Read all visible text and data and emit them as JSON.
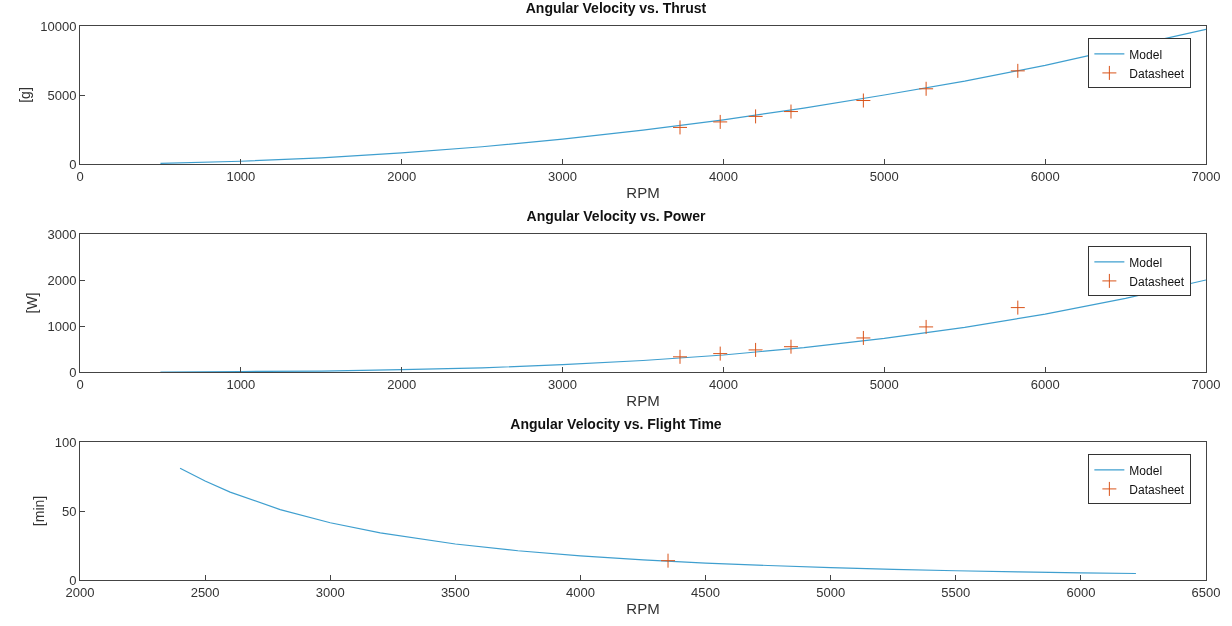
{
  "chart_data": [
    {
      "type": "line",
      "title": "Angular Velocity vs. Thrust",
      "xlabel": "RPM",
      "ylabel": "[g]",
      "xlim": [
        0,
        7000
      ],
      "xticks": [
        0,
        1000,
        2000,
        3000,
        4000,
        5000,
        6000,
        7000
      ],
      "ylim": [
        0,
        10000
      ],
      "yticks": [
        0,
        5000,
        10000
      ],
      "grid": false,
      "legend": "top right",
      "series": [
        {
          "name": "Model",
          "type": "line",
          "color": "#3f9fcf",
          "marker": "none",
          "line_style": "solid",
          "x": [
            500,
            1000,
            1500,
            2000,
            2500,
            3000,
            3500,
            4000,
            4500,
            5000,
            5500,
            6000,
            7000
          ],
          "values": [
            50,
            200,
            450,
            800,
            1250,
            1800,
            2450,
            3200,
            4050,
            5000,
            6000,
            7150,
            9750
          ]
        },
        {
          "name": "Datasheet",
          "type": "scatter",
          "color": "#d95319",
          "marker": "cross",
          "x": [
            3730,
            3980,
            4200,
            4420,
            4870,
            5260,
            5830
          ],
          "values": [
            2650,
            3050,
            3450,
            3800,
            4600,
            5450,
            6750
          ]
        }
      ]
    },
    {
      "type": "line",
      "title": "Angular Velocity vs. Power",
      "xlabel": "RPM",
      "ylabel": "[W]",
      "xlim": [
        0,
        7000
      ],
      "xticks": [
        0,
        1000,
        2000,
        3000,
        4000,
        5000,
        6000,
        7000
      ],
      "ylim": [
        0,
        3000
      ],
      "yticks": [
        0,
        1000,
        2000,
        3000
      ],
      "grid": false,
      "legend": "top right",
      "series": [
        {
          "name": "Model",
          "type": "line",
          "color": "#3f9fcf",
          "marker": "none",
          "line_style": "solid",
          "x": [
            500,
            1000,
            1500,
            2000,
            2500,
            3000,
            3500,
            4000,
            4500,
            5000,
            5500,
            6000,
            6500,
            7000
          ],
          "values": [
            0,
            10,
            20,
            50,
            90,
            160,
            250,
            370,
            530,
            730,
            970,
            1260,
            1600,
            2000
          ]
        },
        {
          "name": "Datasheet",
          "type": "scatter",
          "color": "#d95319",
          "marker": "cross",
          "x": [
            3730,
            3980,
            4200,
            4420,
            4870,
            5260,
            5830
          ],
          "values": [
            330,
            400,
            480,
            550,
            740,
            980,
            1400
          ]
        }
      ]
    },
    {
      "type": "line",
      "title": "Angular Velocity vs. Flight Time",
      "xlabel": "RPM",
      "ylabel": "[min]",
      "xlim": [
        2000,
        6500
      ],
      "xticks": [
        2000,
        2500,
        3000,
        3500,
        4000,
        4500,
        5000,
        5500,
        6000,
        6500
      ],
      "ylim": [
        0,
        100
      ],
      "yticks": [
        0,
        50,
        100
      ],
      "grid": false,
      "legend": "top right",
      "series": [
        {
          "name": "Model",
          "type": "line",
          "color": "#3f9fcf",
          "marker": "none",
          "line_style": "solid",
          "x": [
            2400,
            2500,
            2600,
            2800,
            3000,
            3200,
            3500,
            3750,
            4000,
            4250,
            4500,
            4750,
            5000,
            5250,
            5500,
            5750,
            6000,
            6220
          ],
          "values": [
            81,
            71.7,
            63.7,
            51,
            41.5,
            34.2,
            26.1,
            21.2,
            17.5,
            14.6,
            12.3,
            10.5,
            9,
            7.7,
            6.7,
            5.9,
            5.2,
            4.7
          ]
        },
        {
          "name": "Datasheet",
          "type": "scatter",
          "color": "#d95319",
          "marker": "cross",
          "x": [
            4350
          ],
          "values": [
            14
          ]
        }
      ]
    }
  ]
}
